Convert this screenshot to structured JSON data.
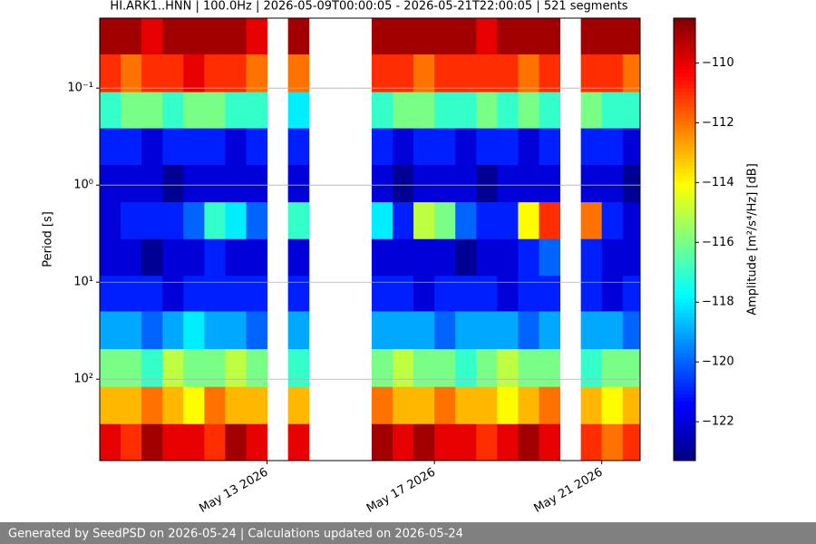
{
  "chart_data": {
    "type": "spectrogram",
    "title": "HI.ARK1..HNN | 100.0Hz | 2026-05-09T00:00:05 - 2026-05-21T22:00:05 | 521 segments",
    "ylabel": "Period [s]",
    "colorbar_label": "Amplitude [m²/s⁴/Hz] [dB]",
    "footer": "Generated by SeedPSD on 2026-05-24 | Calculations updated on 2026-05-24",
    "colormap": "jet",
    "clim": [
      -123.3,
      -108.5
    ],
    "cticks": [
      {
        "value": -110,
        "label": "−110"
      },
      {
        "value": -112,
        "label": "−112"
      },
      {
        "value": -114,
        "label": "−114"
      },
      {
        "value": -116,
        "label": "−116"
      },
      {
        "value": -118,
        "label": "−118"
      },
      {
        "value": -120,
        "label": "−120"
      },
      {
        "value": -122,
        "label": "−122"
      }
    ],
    "xlim": [
      "2026-05-09T00:00",
      "2026-05-21T22:00"
    ],
    "xticks": [
      {
        "value": "2026-05-13T00:00",
        "label": "May 13 2026"
      },
      {
        "value": "2026-05-17T00:00",
        "label": "May 17 2026"
      },
      {
        "value": "2026-05-21T00:00",
        "label": "May 21 2026"
      }
    ],
    "ylim": [
      0.019,
      690
    ],
    "ylog": true,
    "yinverted": true,
    "grid": true,
    "yticks": [
      {
        "value": 0.1,
        "label": "10⁻¹"
      },
      {
        "value": 1,
        "label": "10⁰"
      },
      {
        "value": 10,
        "label": "10¹"
      },
      {
        "value": 100,
        "label": "10²"
      }
    ],
    "x_edges": [
      "2026-05-09T00:00",
      "2026-05-09T12:00",
      "2026-05-10T00:00",
      "2026-05-10T12:00",
      "2026-05-11T00:00",
      "2026-05-11T12:00",
      "2026-05-12T00:00",
      "2026-05-12T12:00",
      "2026-05-13T00:00",
      "2026-05-13T12:00",
      "2026-05-14T00:00",
      "2026-05-14T12:00",
      "2026-05-15T00:00",
      "2026-05-15T12:00",
      "2026-05-16T00:00",
      "2026-05-16T12:00",
      "2026-05-17T00:00",
      "2026-05-17T12:00",
      "2026-05-18T00:00",
      "2026-05-18T12:00",
      "2026-05-19T00:00",
      "2026-05-19T12:00",
      "2026-05-20T00:00",
      "2026-05-20T12:00",
      "2026-05-21T00:00",
      "2026-05-21T12:00",
      "2026-05-21T22:00"
    ],
    "y_edges": [
      0.019,
      0.045,
      0.11,
      0.26,
      0.62,
      1.5,
      3.6,
      8.6,
      20,
      49,
      120,
      290,
      690
    ],
    "values": [
      [
        -109,
        -109,
        -110,
        -109,
        -109,
        -109,
        -109,
        -110,
        null,
        -109,
        null,
        null,
        null,
        -109,
        -109,
        -109,
        -109,
        -109,
        -110,
        -109,
        -109,
        -109,
        null,
        -109,
        -109,
        -109
      ],
      [
        -111,
        -112,
        -111,
        -111,
        -110,
        -111,
        -111,
        -112,
        null,
        -112,
        null,
        null,
        null,
        -111,
        -111,
        -112,
        -111,
        -111,
        -111,
        -111,
        -112,
        -111,
        null,
        -111,
        -111,
        -112
      ],
      [
        -117,
        -116,
        -116,
        -117,
        -116,
        -116,
        -117,
        -117,
        null,
        -118,
        null,
        null,
        null,
        -117,
        -116,
        -116,
        -117,
        -117,
        -116,
        -117,
        -116,
        -117,
        null,
        -116,
        -117,
        -117
      ],
      [
        -121,
        -121,
        -122,
        -121,
        -121,
        -121,
        -122,
        -121,
        null,
        -121,
        null,
        null,
        null,
        -121,
        -122,
        -121,
        -121,
        -122,
        -121,
        -121,
        -122,
        -121,
        null,
        -121,
        -121,
        -122
      ],
      [
        -122,
        -122,
        -122,
        -123,
        -122,
        -122,
        -122,
        -122,
        null,
        -122,
        null,
        null,
        null,
        -122,
        -123,
        -122,
        -122,
        -122,
        -123,
        -122,
        -122,
        -122,
        null,
        -122,
        -122,
        -123
      ],
      [
        -122,
        -121,
        -121,
        -121,
        -120,
        -117,
        -118,
        -120,
        null,
        -117,
        null,
        null,
        null,
        -118,
        -121,
        -115,
        -116,
        -120,
        -121,
        -121,
        -114,
        -111,
        null,
        -112,
        -121,
        -122
      ],
      [
        -122,
        -122,
        -123,
        -122,
        -122,
        -121,
        -122,
        -122,
        null,
        -122,
        null,
        null,
        null,
        -122,
        -122,
        -122,
        -122,
        -123,
        -122,
        -122,
        -121,
        -120,
        null,
        -121,
        -122,
        -122
      ],
      [
        -121,
        -121,
        -121,
        -122,
        -121,
        -121,
        -121,
        -121,
        null,
        -121,
        null,
        null,
        null,
        -121,
        -121,
        -122,
        -121,
        -121,
        -121,
        -122,
        -121,
        -121,
        null,
        -121,
        -122,
        -121
      ],
      [
        -119,
        -119,
        -120,
        -119,
        -118,
        -119,
        -119,
        -120,
        null,
        -119,
        null,
        null,
        null,
        -119,
        -119,
        -119,
        -120,
        -119,
        -119,
        -119,
        -120,
        -119,
        null,
        -119,
        -119,
        -120
      ],
      [
        -116,
        -116,
        -117,
        -115,
        -116,
        -116,
        -115,
        -116,
        null,
        -117,
        null,
        null,
        null,
        -116,
        -115,
        -116,
        -116,
        -117,
        -116,
        -115,
        -116,
        -116,
        null,
        -117,
        -116,
        -116
      ],
      [
        -113,
        -113,
        -112,
        -113,
        -114,
        -112,
        -113,
        -113,
        null,
        -113,
        null,
        null,
        null,
        -112,
        -113,
        -113,
        -112,
        -113,
        -113,
        -114,
        -113,
        -112,
        null,
        -113,
        -114,
        -113
      ],
      [
        -110,
        -111,
        -109,
        -110,
        -110,
        -111,
        -109,
        -110,
        null,
        -110,
        null,
        null,
        null,
        -109,
        -110,
        -109,
        -110,
        -110,
        -111,
        -110,
        -109,
        -110,
        null,
        -111,
        -112,
        -111
      ]
    ]
  }
}
